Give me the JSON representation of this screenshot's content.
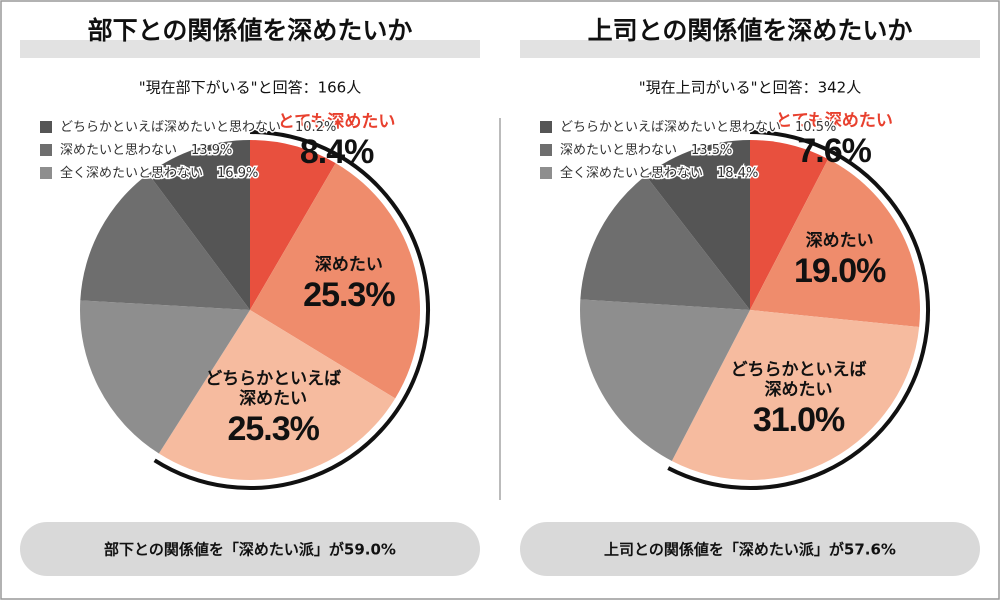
{
  "chart_data": [
    {
      "type": "pie",
      "title": "部下との関係値を深めたいか",
      "subtitle": "\"現在部下がいる\"と回答：166人",
      "categories": [
        "とても深めたい",
        "深めたい",
        "どちらかといえば深めたい",
        "全く深めたいと思わない",
        "深めたいと思わない",
        "どちらかといえば深めたいと思わない"
      ],
      "values": [
        8.4,
        25.3,
        25.3,
        16.9,
        13.9,
        10.2
      ],
      "value_labels": [
        "8.4%",
        "25.3%",
        "25.3%",
        "16.9%",
        "13.9%",
        "10.2%"
      ],
      "colors": [
        "#e8503e",
        "#ef8c6c",
        "#f6bb9f",
        "#8e8e8e",
        "#6e6e6e",
        "#555555"
      ],
      "summary": "部下との関係値を「深めたい派」が59.0%"
    },
    {
      "type": "pie",
      "title": "上司との関係値を深めたいか",
      "subtitle": "\"現在上司がいる\"と回答：342人",
      "categories": [
        "とても深めたい",
        "深めたい",
        "どちらかといえば深めたい",
        "全く深めたいと思わない",
        "深めたいと思わない",
        "どちらかといえば深めたいと思わない"
      ],
      "values": [
        7.6,
        19.0,
        31.0,
        18.4,
        13.5,
        10.5
      ],
      "value_labels": [
        "7.6%",
        "19.0%",
        "31.0%",
        "18.4%",
        "13.5%",
        "10.5%"
      ],
      "colors": [
        "#e8503e",
        "#ef8c6c",
        "#f6bb9f",
        "#8e8e8e",
        "#6e6e6e",
        "#555555"
      ],
      "summary": "上司との関係値を「深めたい派」が57.6%"
    }
  ]
}
